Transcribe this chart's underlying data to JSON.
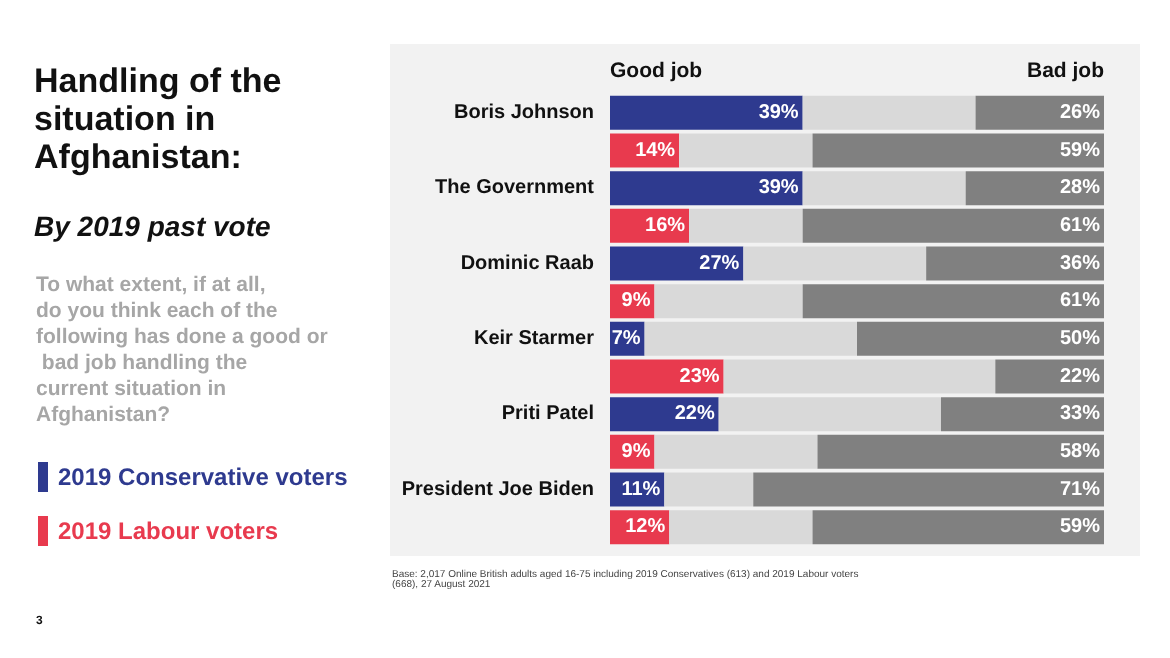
{
  "chart_data": {
    "type": "bar",
    "orientation": "horizontal",
    "stacked": true,
    "title": "Handling of the situation in Afghanistan:",
    "subtitle": "By 2019 past vote",
    "categories": [
      "Boris Johnson",
      null,
      "The Government",
      null,
      "Dominic Raab",
      null,
      "Keir Starmer",
      null,
      "Priti Patel",
      null,
      "President Joe Biden",
      null
    ],
    "series": [
      {
        "name": "2019 Conservative voters",
        "color": "#2e3a8f",
        "values": [
          39,
          null,
          39,
          null,
          27,
          null,
          7,
          null,
          22,
          null,
          11,
          null
        ],
        "value_labels": [
          "39%",
          null,
          "39%",
          null,
          "27%",
          null,
          "7%",
          null,
          "22%",
          null,
          "11%",
          null
        ]
      },
      {
        "name": "2019 Labour voters",
        "color": "#e83a4e",
        "values": [
          null,
          14,
          null,
          16,
          null,
          9,
          null,
          23,
          null,
          9,
          null,
          12
        ],
        "value_labels": [
          null,
          "14%",
          null,
          "16%",
          null,
          "9%",
          null,
          "23%",
          null,
          "9%",
          null,
          "12%"
        ]
      },
      {
        "color": "#d9d9d9",
        "values": [
          35,
          27,
          33,
          23,
          37,
          30,
          43,
          55,
          45,
          33,
          18,
          29
        ]
      },
      {
        "color": "#808080",
        "values": [
          26,
          59,
          28,
          61,
          36,
          61,
          50,
          22,
          33,
          58,
          71,
          59
        ],
        "value_labels": [
          "26%",
          "59%",
          "28%",
          "61%",
          "36%",
          "61%",
          "50%",
          "22%",
          "33%",
          "58%",
          "71%",
          "59%"
        ]
      }
    ],
    "xlim": [
      0,
      100
    ],
    "tick_labels": "y",
    "legend": "left",
    "annotations": [
      "To what extent, if at all, do you think each of the following has done a good or bad job handling the current situation in Afghanistan?",
      "Good job",
      "Bad job",
      "Base: 2,017 Online British adults aged 16-75 including 2019 Conservatives (613) and 2019 Labour voters (668), 27 August 2021",
      "3"
    ]
  }
}
